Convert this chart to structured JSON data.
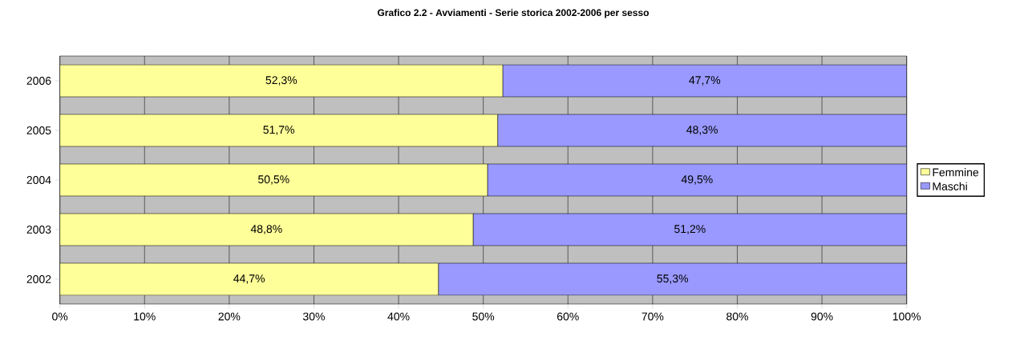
{
  "chart_data": {
    "type": "bar",
    "orientation": "horizontal",
    "stacked": true,
    "title": "Grafico 2.2 - Avviamenti - Serie storica 2002-2006 per sesso",
    "categories": [
      "2006",
      "2005",
      "2004",
      "2003",
      "2002"
    ],
    "series": [
      {
        "name": "Femmine",
        "color": "#ffff99",
        "values": [
          52.3,
          51.7,
          50.5,
          48.8,
          44.7
        ],
        "value_labels": [
          "52,3%",
          "51,7%",
          "50,5%",
          "48,8%",
          "44,7%"
        ]
      },
      {
        "name": "Maschi",
        "color": "#9999ff",
        "values": [
          47.7,
          48.3,
          49.5,
          51.2,
          55.3
        ],
        "value_labels": [
          "47,7%",
          "48,3%",
          "49,5%",
          "51,2%",
          "55,3%"
        ]
      }
    ],
    "xlim": [
      0,
      100
    ],
    "xticks": [
      {
        "value": 0,
        "label": "0%"
      },
      {
        "value": 10,
        "label": "10%"
      },
      {
        "value": 20,
        "label": "20%"
      },
      {
        "value": 30,
        "label": "30%"
      },
      {
        "value": 40,
        "label": "40%"
      },
      {
        "value": 50,
        "label": "50%"
      },
      {
        "value": 60,
        "label": "60%"
      },
      {
        "value": 70,
        "label": "70%"
      },
      {
        "value": 80,
        "label": "80%"
      },
      {
        "value": 90,
        "label": "90%"
      },
      {
        "value": 100,
        "label": "100%"
      }
    ],
    "grid": "x",
    "legend": "right"
  }
}
